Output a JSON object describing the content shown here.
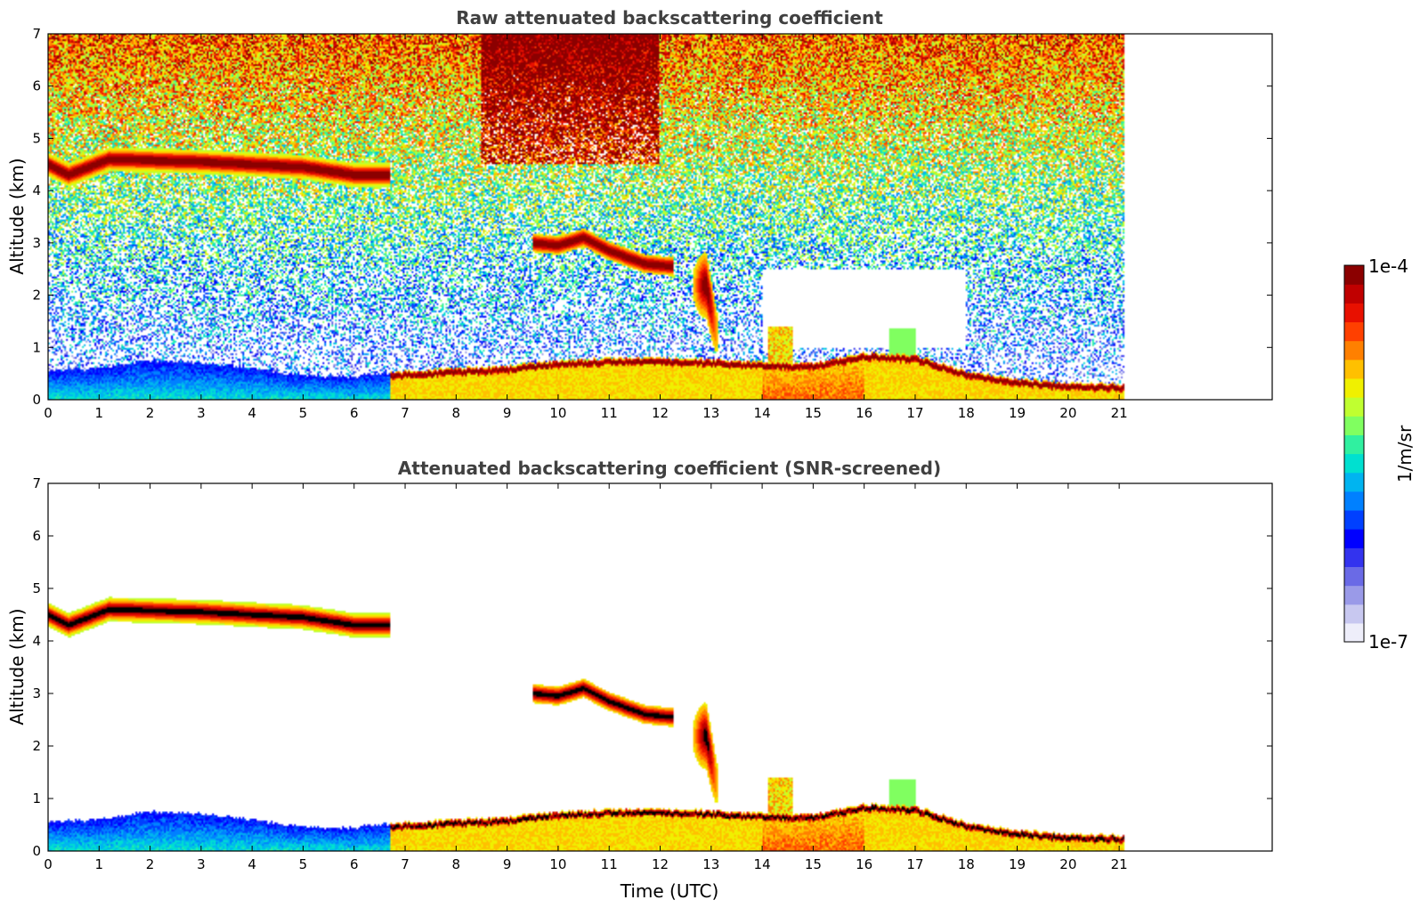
{
  "chart_data": [
    {
      "type": "heatmap",
      "title": "Raw attenuated backscattering coefficient",
      "xlabel": "",
      "ylabel": "Altitude (km)",
      "xlim": [
        0,
        24
      ],
      "ylim": [
        0,
        7
      ],
      "x_ticks": [
        "0",
        "1",
        "2",
        "3",
        "4",
        "5",
        "6",
        "7",
        "8",
        "9",
        "10",
        "11",
        "12",
        "13",
        "14",
        "15",
        "16",
        "17",
        "18",
        "19",
        "20",
        "21"
      ],
      "y_ticks": [
        "0",
        "1",
        "2",
        "3",
        "4",
        "5",
        "6",
        "7"
      ],
      "data_end_time": 21.1,
      "screened": false,
      "features": [
        {
          "name": "cirrus layer",
          "t": [
            0,
            6.7
          ],
          "alt_km": [
            4.2,
            4.7
          ],
          "level": "high"
        },
        {
          "name": "mid-level cloud",
          "t": [
            9.5,
            12.2
          ],
          "alt_km": [
            2.5,
            3.2
          ],
          "level": "high"
        },
        {
          "name": "boundary layer",
          "t": [
            0,
            21.1
          ],
          "alt_km": [
            0,
            1.0
          ],
          "level": "medium-high"
        },
        {
          "name": "noise",
          "t": [
            0,
            21.1
          ],
          "alt_km": [
            0.5,
            7
          ],
          "level": "noise"
        }
      ]
    },
    {
      "type": "heatmap",
      "title": "Attenuated backscattering coefficient (SNR-screened)",
      "xlabel": "Time (UTC)",
      "ylabel": "Altitude (km)",
      "xlim": [
        0,
        24
      ],
      "ylim": [
        0,
        7
      ],
      "x_ticks": [
        "0",
        "1",
        "2",
        "3",
        "4",
        "5",
        "6",
        "7",
        "8",
        "9",
        "10",
        "11",
        "12",
        "13",
        "14",
        "15",
        "16",
        "17",
        "18",
        "19",
        "20",
        "21"
      ],
      "y_ticks": [
        "0",
        "1",
        "2",
        "3",
        "4",
        "5",
        "6",
        "7"
      ],
      "data_end_time": 21.1,
      "screened": true
    }
  ],
  "colorbar": {
    "label": "1/m/sr",
    "min_label": "1e-7",
    "max_label": "1e-4",
    "colors": [
      "#eeeefa",
      "#c8c8f0",
      "#9a9ae8",
      "#6a6ae6",
      "#3333ee",
      "#0000ff",
      "#0040ff",
      "#0080ff",
      "#00b4f0",
      "#00e0d0",
      "#30f0a0",
      "#80ff60",
      "#c0ff30",
      "#f0f000",
      "#ffc000",
      "#ff8000",
      "#ff4000",
      "#e81000",
      "#c00000",
      "#8b0000"
    ]
  }
}
